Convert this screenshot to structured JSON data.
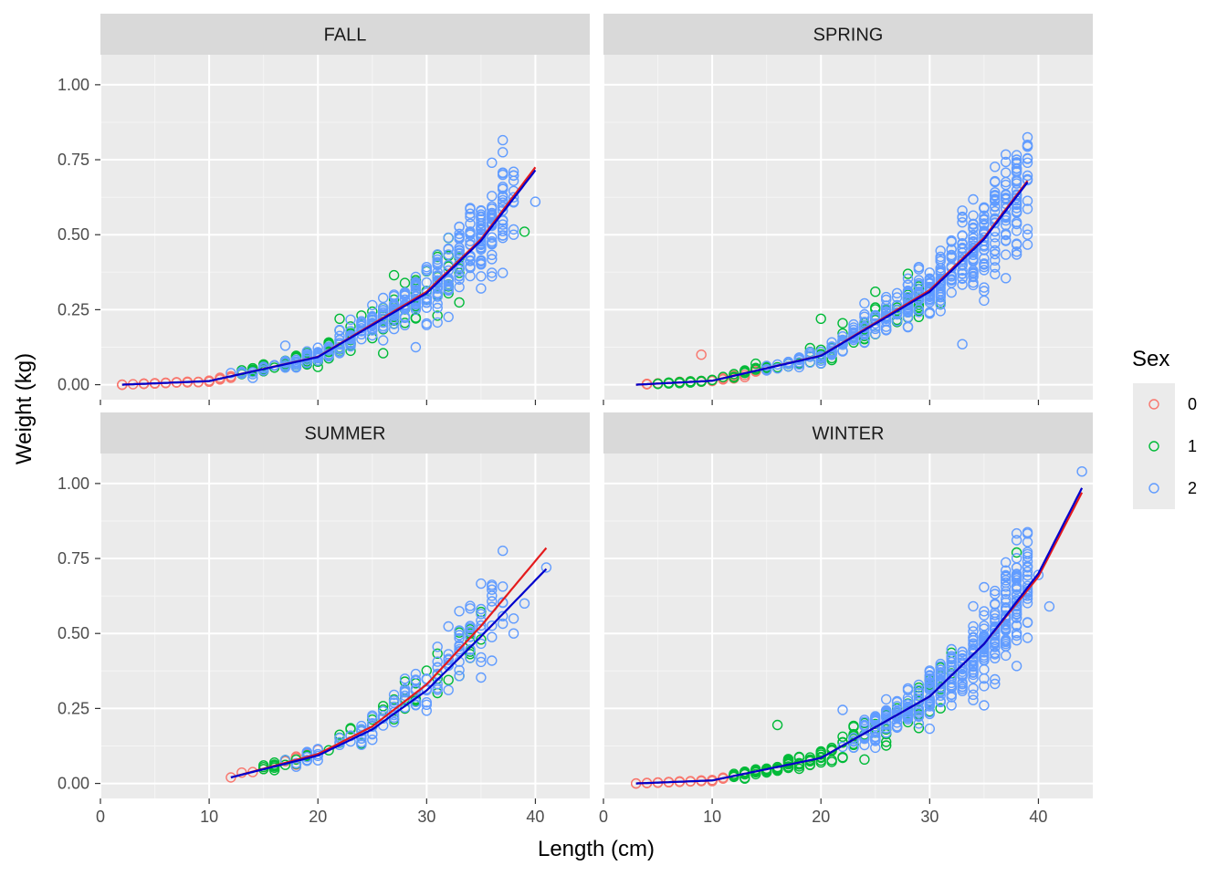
{
  "chart_data": {
    "type": "scatter",
    "xlabel": "Length (cm)",
    "ylabel": "Weight (kg)",
    "xlim": [
      0,
      45
    ],
    "ylim": [
      -0.05,
      1.1
    ],
    "x_ticks": [
      "0",
      "10",
      "20",
      "30",
      "40"
    ],
    "y_ticks": [
      "0.00",
      "0.25",
      "0.50",
      "0.75",
      "1.00"
    ],
    "x_tick_values": [
      0,
      10,
      20,
      30,
      40
    ],
    "y_tick_values": [
      0,
      0.25,
      0.5,
      0.75,
      1.0
    ],
    "grid": true,
    "legend": {
      "title": "Sex",
      "position": "right",
      "entries": [
        {
          "label": "0",
          "color": "#F8766D"
        },
        {
          "label": "1",
          "color": "#00BA38"
        },
        {
          "label": "2",
          "color": "#619CFF"
        }
      ]
    },
    "fit_line_colors": [
      "#E41A1C",
      "#0000CC"
    ],
    "panels": [
      {
        "name": "FALL",
        "x_range": [
          2,
          40
        ],
        "fit_red": [
          {
            "x": 2,
            "y": 0.0
          },
          {
            "x": 10,
            "y": 0.012
          },
          {
            "x": 20,
            "y": 0.093
          },
          {
            "x": 30,
            "y": 0.31
          },
          {
            "x": 35,
            "y": 0.485
          },
          {
            "x": 40,
            "y": 0.725
          }
        ],
        "fit_blue": [
          {
            "x": 2,
            "y": 0.0
          },
          {
            "x": 10,
            "y": 0.012
          },
          {
            "x": 20,
            "y": 0.092
          },
          {
            "x": 30,
            "y": 0.305
          },
          {
            "x": 35,
            "y": 0.48
          },
          {
            "x": 40,
            "y": 0.715
          }
        ],
        "clusters": [
          {
            "sex": 0,
            "x": [
              2,
              12
            ],
            "n": 45,
            "spread": 0.22
          },
          {
            "sex": 1,
            "x": [
              13,
              33
            ],
            "n": 120,
            "spread": 0.3
          },
          {
            "sex": 2,
            "x": [
              12,
              38
            ],
            "n": 360,
            "spread": 0.28
          }
        ],
        "outliers": [
          {
            "sex": 2,
            "x": 37,
            "y": 0.775
          },
          {
            "sex": 2,
            "x": 38,
            "y": 0.71
          },
          {
            "sex": 2,
            "x": 40,
            "y": 0.61
          },
          {
            "sex": 1,
            "x": 39,
            "y": 0.51
          },
          {
            "sex": 1,
            "x": 27,
            "y": 0.365
          },
          {
            "sex": 1,
            "x": 22,
            "y": 0.22
          },
          {
            "sex": 2,
            "x": 17,
            "y": 0.13
          },
          {
            "sex": 2,
            "x": 29,
            "y": 0.125
          },
          {
            "sex": 1,
            "x": 26,
            "y": 0.105
          }
        ]
      },
      {
        "name": "SPRING",
        "x_range": [
          3,
          39
        ],
        "fit_red": [
          {
            "x": 3,
            "y": 0.0
          },
          {
            "x": 10,
            "y": 0.013
          },
          {
            "x": 20,
            "y": 0.097
          },
          {
            "x": 30,
            "y": 0.315
          },
          {
            "x": 35,
            "y": 0.49
          },
          {
            "x": 39,
            "y": 0.68
          }
        ],
        "fit_blue": [
          {
            "x": 3,
            "y": 0.0
          },
          {
            "x": 10,
            "y": 0.013
          },
          {
            "x": 20,
            "y": 0.096
          },
          {
            "x": 30,
            "y": 0.31
          },
          {
            "x": 35,
            "y": 0.485
          },
          {
            "x": 39,
            "y": 0.675
          }
        ],
        "clusters": [
          {
            "sex": 0,
            "x": [
              3,
              15
            ],
            "n": 55,
            "spread": 0.25
          },
          {
            "sex": 1,
            "x": [
              5,
              32
            ],
            "n": 110,
            "spread": 0.3
          },
          {
            "sex": 2,
            "x": [
              14,
              39
            ],
            "n": 420,
            "spread": 0.3
          }
        ],
        "outliers": [
          {
            "sex": 2,
            "x": 39,
            "y": 0.825
          },
          {
            "sex": 2,
            "x": 39,
            "y": 0.74
          },
          {
            "sex": 2,
            "x": 38,
            "y": 0.75
          },
          {
            "sex": 2,
            "x": 39,
            "y": 0.5
          },
          {
            "sex": 2,
            "x": 38,
            "y": 0.47
          },
          {
            "sex": 0,
            "x": 9,
            "y": 0.1
          },
          {
            "sex": 1,
            "x": 20,
            "y": 0.22
          },
          {
            "sex": 1,
            "x": 22,
            "y": 0.205
          },
          {
            "sex": 1,
            "x": 25,
            "y": 0.31
          },
          {
            "sex": 2,
            "x": 33,
            "y": 0.135
          },
          {
            "sex": 1,
            "x": 14,
            "y": 0.07
          }
        ]
      },
      {
        "name": "SUMMER",
        "x_range": [
          12,
          41
        ],
        "fit_red": [
          {
            "x": 12,
            "y": 0.02
          },
          {
            "x": 20,
            "y": 0.098
          },
          {
            "x": 25,
            "y": 0.19
          },
          {
            "x": 30,
            "y": 0.33
          },
          {
            "x": 35,
            "y": 0.525
          },
          {
            "x": 41,
            "y": 0.785
          }
        ],
        "fit_blue": [
          {
            "x": 12,
            "y": 0.02
          },
          {
            "x": 20,
            "y": 0.093
          },
          {
            "x": 25,
            "y": 0.18
          },
          {
            "x": 30,
            "y": 0.31
          },
          {
            "x": 35,
            "y": 0.49
          },
          {
            "x": 41,
            "y": 0.715
          }
        ],
        "clusters": [
          {
            "sex": 0,
            "x": [
              12,
              20
            ],
            "n": 12,
            "spread": 0.2
          },
          {
            "sex": 1,
            "x": [
              13,
              35
            ],
            "n": 55,
            "spread": 0.25
          },
          {
            "sex": 2,
            "x": [
              15,
              37
            ],
            "n": 140,
            "spread": 0.25
          }
        ],
        "outliers": [
          {
            "sex": 2,
            "x": 41,
            "y": 0.72
          },
          {
            "sex": 2,
            "x": 39,
            "y": 0.6
          },
          {
            "sex": 2,
            "x": 35,
            "y": 0.565
          },
          {
            "sex": 2,
            "x": 38,
            "y": 0.55
          },
          {
            "sex": 2,
            "x": 38,
            "y": 0.5
          },
          {
            "sex": 1,
            "x": 35,
            "y": 0.48
          },
          {
            "sex": 0,
            "x": 12,
            "y": 0.02
          }
        ]
      },
      {
        "name": "WINTER",
        "x_range": [
          3,
          44
        ],
        "fit_red": [
          {
            "x": 3,
            "y": 0.0
          },
          {
            "x": 10,
            "y": 0.01
          },
          {
            "x": 20,
            "y": 0.085
          },
          {
            "x": 30,
            "y": 0.29
          },
          {
            "x": 35,
            "y": 0.465
          },
          {
            "x": 40,
            "y": 0.69
          },
          {
            "x": 44,
            "y": 0.97
          }
        ],
        "fit_blue": [
          {
            "x": 3,
            "y": 0.0
          },
          {
            "x": 10,
            "y": 0.01
          },
          {
            "x": 20,
            "y": 0.085
          },
          {
            "x": 30,
            "y": 0.29
          },
          {
            "x": 35,
            "y": 0.465
          },
          {
            "x": 40,
            "y": 0.7
          },
          {
            "x": 44,
            "y": 0.985
          }
        ],
        "clusters": [
          {
            "sex": 0,
            "x": [
              3,
              12
            ],
            "n": 40,
            "spread": 0.2
          },
          {
            "sex": 1,
            "x": [
              12,
              32
            ],
            "n": 140,
            "spread": 0.3
          },
          {
            "sex": 2,
            "x": [
              22,
              39
            ],
            "n": 380,
            "spread": 0.3
          }
        ],
        "outliers": [
          {
            "sex": 2,
            "x": 44,
            "y": 1.04
          },
          {
            "sex": 1,
            "x": 38,
            "y": 0.77
          },
          {
            "sex": 2,
            "x": 40,
            "y": 0.695
          },
          {
            "sex": 2,
            "x": 41,
            "y": 0.59
          },
          {
            "sex": 2,
            "x": 37,
            "y": 0.64
          },
          {
            "sex": 1,
            "x": 16,
            "y": 0.195
          },
          {
            "sex": 2,
            "x": 22,
            "y": 0.245
          },
          {
            "sex": 1,
            "x": 24,
            "y": 0.08
          }
        ]
      }
    ]
  }
}
